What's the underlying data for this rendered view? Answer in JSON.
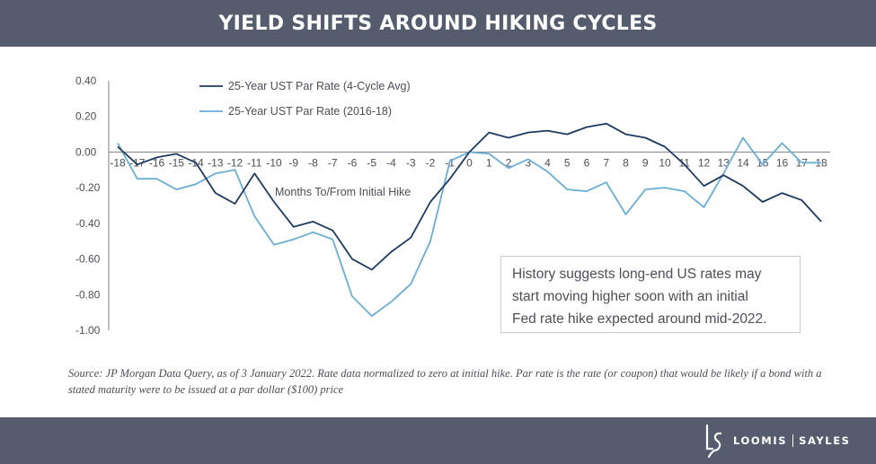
{
  "header": {
    "title": "YIELD SHIFTS AROUND HIKING CYCLES"
  },
  "colors": {
    "banner": "#545c6e",
    "series_avg": "#1f3a60",
    "series_2016": "#6aaed6",
    "axis": "#7a7f87",
    "text": "#4a4f58"
  },
  "chart_data": {
    "type": "line",
    "title": "YIELD SHIFTS AROUND HIKING CYCLES",
    "xlabel": "Months To/From Initial Hike",
    "ylabel": "",
    "x": [
      -18,
      -17,
      -16,
      -15,
      -14,
      -13,
      -12,
      -11,
      -10,
      -9,
      -8,
      -7,
      -6,
      -5,
      -4,
      -3,
      -2,
      -1,
      0,
      1,
      2,
      3,
      4,
      5,
      6,
      7,
      8,
      9,
      10,
      11,
      12,
      13,
      14,
      15,
      16,
      17,
      18
    ],
    "x_tick_labels": [
      "-18",
      "-17",
      "-16",
      "-15",
      "-14",
      "-13",
      "-12",
      "-11",
      "-10",
      "-9",
      "-8",
      "-7",
      "-6",
      "-5",
      "-4",
      "-3",
      "-2",
      "-1",
      "0",
      "1",
      "2",
      "3",
      "4",
      "5",
      "6",
      "7",
      "8",
      "9",
      "10",
      "11",
      "12",
      "13",
      "14",
      "15",
      "16",
      "17",
      "18"
    ],
    "y_ticks": [
      0.4,
      0.2,
      0.0,
      -0.2,
      -0.4,
      -0.6,
      -0.8,
      -1.0
    ],
    "y_tick_labels": [
      "0.40",
      "0.20",
      "0.00",
      "-0.20",
      "-0.40",
      "-0.60",
      "-0.80",
      "-1.00"
    ],
    "ylim": [
      -1.0,
      0.4
    ],
    "xlim": [
      -18,
      18
    ],
    "grid": false,
    "legend_position": "top-left",
    "series": [
      {
        "name": "25-Year UST Par Rate (4-Cycle Avg)",
        "values": [
          0.03,
          -0.07,
          -0.03,
          -0.01,
          -0.06,
          -0.23,
          -0.29,
          -0.12,
          -0.28,
          -0.42,
          -0.39,
          -0.44,
          -0.6,
          -0.66,
          -0.56,
          -0.48,
          -0.28,
          -0.15,
          0.0,
          0.11,
          0.08,
          0.11,
          0.12,
          0.1,
          0.14,
          0.16,
          0.1,
          0.08,
          0.03,
          -0.07,
          -0.19,
          -0.13,
          -0.19,
          -0.28,
          -0.23,
          -0.27,
          -0.39
        ]
      },
      {
        "name": "25-Year UST Par Rate (2016-18)",
        "values": [
          0.05,
          -0.15,
          -0.15,
          -0.21,
          -0.18,
          -0.12,
          -0.1,
          -0.36,
          -0.52,
          -0.49,
          -0.45,
          -0.49,
          -0.81,
          -0.92,
          -0.84,
          -0.74,
          -0.5,
          -0.05,
          0.0,
          -0.01,
          -0.09,
          -0.04,
          -0.11,
          -0.21,
          -0.22,
          -0.17,
          -0.35,
          -0.21,
          -0.2,
          -0.22,
          -0.31,
          -0.12,
          0.08,
          -0.07,
          0.05,
          -0.06,
          -0.06
        ]
      }
    ]
  },
  "annotation": {
    "lines": [
      "History suggests long-end US rates may",
      "start moving higher soon with an initial",
      "Fed rate hike expected around mid-2022."
    ]
  },
  "source": {
    "text": "Source: JP Morgan Data Query, as of 3 January 2022. Rate data normalized to zero at initial hike. Par rate is the rate (or coupon) that would be likely if a bond with a stated maturity were to be issued at a par dollar ($100) price"
  },
  "footer": {
    "logo_left": "LOOMIS",
    "logo_right": "SAYLES",
    "logo_icon": "ls-monogram-icon"
  }
}
